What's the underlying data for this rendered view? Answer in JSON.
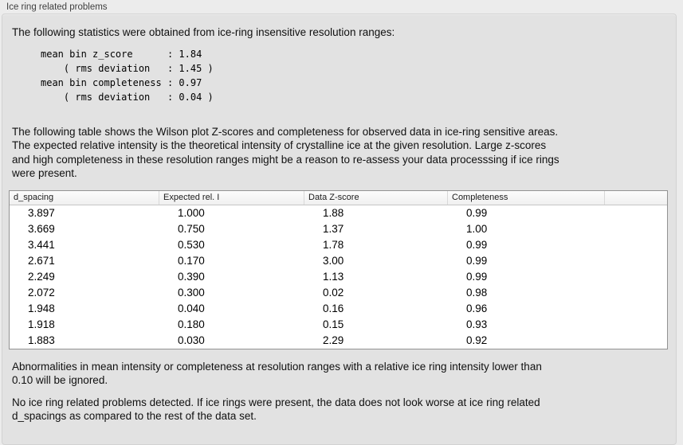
{
  "panel": {
    "title": "Ice ring related problems"
  },
  "intro": "The following statistics were obtained from ice-ring insensitive resolution ranges:",
  "stats_block": "mean bin z_score      : 1.84\n    ( rms deviation   : 1.45 )\nmean bin completeness : 0.97\n    ( rms deviation   : 0.04 )",
  "stats": {
    "mean_bin_z_score": "1.84",
    "z_score_rms_deviation": "1.45",
    "mean_bin_completeness": "0.97",
    "completeness_rms_deviation": "0.04"
  },
  "table_intro": "The following table shows the Wilson plot Z-scores and completeness for observed data in ice-ring sensitive areas.\nThe expected relative intensity is the theoretical intensity of crystalline ice at the given resolution. Large z-scores\nand high completeness in these resolution ranges might be a reason to re-assess your data processsing if ice rings\nwere present.",
  "table": {
    "columns": [
      "d_spacing",
      "Expected rel. I",
      "Data Z-score",
      "Completeness"
    ],
    "rows": [
      [
        "3.897",
        "1.000",
        "1.88",
        "0.99"
      ],
      [
        "3.669",
        "0.750",
        "1.37",
        "1.00"
      ],
      [
        "3.441",
        "0.530",
        "1.78",
        "0.99"
      ],
      [
        "2.671",
        "0.170",
        "3.00",
        "0.99"
      ],
      [
        "2.249",
        "0.390",
        "1.13",
        "0.99"
      ],
      [
        "2.072",
        "0.300",
        "0.02",
        "0.98"
      ],
      [
        "1.948",
        "0.040",
        "0.16",
        "0.96"
      ],
      [
        "1.918",
        "0.180",
        "0.15",
        "0.93"
      ],
      [
        "1.883",
        "0.030",
        "2.29",
        "0.92"
      ]
    ]
  },
  "note_ignore": "Abnormalities in mean intensity or completeness at resolution ranges with a relative ice ring intensity lower than\n0.10 will be ignored.",
  "conclusion": "No ice ring related problems detected. If ice rings were present, the data does not look worse at ice ring related\nd_spacings as compared to the rest of the data set.",
  "colors": {
    "page_background": "#ececec",
    "panel_background": "#e2e2e2",
    "panel_border": "#d2d2d2",
    "table_border": "#929292",
    "table_background": "#ffffff",
    "header_gradient_top": "#fcfcfc",
    "header_gradient_bottom": "#f0f0f0"
  }
}
